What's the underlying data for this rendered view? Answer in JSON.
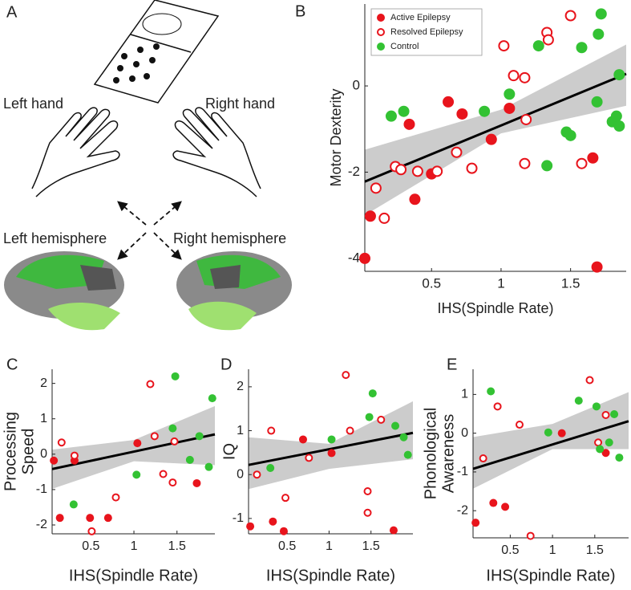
{
  "illustration": {
    "panel": "A",
    "texts": [
      "Left hand",
      "Right hand",
      "Left hemisphere",
      "Right hemisphere"
    ]
  },
  "chart_data": [
    {
      "type": "scatter",
      "panel": "B",
      "x_label": "IHS(Spindle Rate)",
      "y_label": [
        "Motor Dexterity"
      ],
      "xlim": [
        0.02,
        1.9
      ],
      "ylim": [
        -4.3,
        1.9
      ],
      "xticks": [
        0.5,
        1,
        1.5
      ],
      "yticks": [
        -4,
        -2,
        0
      ],
      "legend": "upper left",
      "marker_size": 7,
      "fit": {
        "x": [
          0.02,
          1.9
        ],
        "y": [
          -2.22,
          0.28
        ]
      },
      "ci": {
        "x": [
          0.02,
          1.0,
          1.9
        ],
        "lower": [
          -3.0,
          -1.1,
          -0.46
        ],
        "upper": [
          -1.48,
          -0.55,
          0.96
        ],
        "color": "#cccccc"
      },
      "series": [
        {
          "name": "Active Epilepsy",
          "color": "#e8141c",
          "marker": "filled",
          "x": [
            0.02,
            0.06,
            0.34,
            0.38,
            0.5,
            0.62,
            0.72,
            0.93,
            1.06,
            1.66,
            1.69
          ],
          "y": [
            -4.0,
            -3.02,
            -0.89,
            -2.63,
            -2.04,
            -0.37,
            -0.65,
            -1.24,
            -0.52,
            -1.67,
            -4.2
          ]
        },
        {
          "name": "Resolved Epilepsy",
          "color": "#e8141c",
          "marker": "open",
          "x": [
            0.1,
            0.16,
            0.24,
            0.28,
            0.4,
            0.54,
            0.68,
            0.79,
            1.02,
            1.09,
            1.17,
            1.18,
            1.17,
            1.33,
            1.34,
            1.5,
            1.58
          ],
          "y": [
            -2.37,
            -3.07,
            -1.87,
            -1.94,
            -1.98,
            -1.98,
            -1.54,
            -1.91,
            0.93,
            0.24,
            0.19,
            -0.78,
            -1.8,
            1.24,
            1.07,
            1.63,
            -1.8
          ]
        },
        {
          "name": "Control",
          "color": "#33c233",
          "marker": "filled",
          "x": [
            0.21,
            0.3,
            0.88,
            1.06,
            1.27,
            1.33,
            1.47,
            1.5,
            1.58,
            1.69,
            1.7,
            1.72,
            1.8,
            1.83,
            1.85,
            1.85
          ],
          "y": [
            -0.7,
            -0.59,
            -0.59,
            -0.19,
            0.93,
            -1.85,
            -1.07,
            -1.15,
            0.89,
            -0.37,
            1.2,
            1.67,
            -0.83,
            -0.7,
            -0.93,
            0.26
          ]
        }
      ]
    },
    {
      "type": "scatter",
      "panel": "C",
      "x_label": "IHS(Spindle Rate)",
      "y_label": [
        "Processing",
        "Speed"
      ],
      "xlim": [
        0.05,
        1.94
      ],
      "ylim": [
        -2.25,
        2.4
      ],
      "xticks": [
        0.5,
        1,
        1.5
      ],
      "yticks": [
        -2,
        -1,
        0,
        1,
        2
      ],
      "marker_size": 5,
      "fit": {
        "x": [
          0.05,
          1.94
        ],
        "y": [
          -0.42,
          0.56
        ]
      },
      "ci": {
        "x": [
          0.05,
          1.0,
          1.94
        ],
        "lower": [
          -0.98,
          -0.2,
          -0.31
        ],
        "upper": [
          0.13,
          0.4,
          1.36
        ],
        "color": "#cccccc"
      },
      "series": [
        {
          "name": "Active Epilepsy",
          "color": "#e8141c",
          "marker": "filled",
          "x": [
            0.07,
            0.14,
            0.31,
            0.49,
            0.7,
            1.04,
            1.73
          ],
          "y": [
            -0.18,
            -1.8,
            -0.18,
            -1.8,
            -1.8,
            0.31,
            -0.82
          ]
        },
        {
          "name": "Resolved Epilepsy",
          "color": "#e8141c",
          "marker": "open",
          "x": [
            0.16,
            0.31,
            0.51,
            0.79,
            1.19,
            1.24,
            1.34,
            1.45,
            1.47
          ],
          "y": [
            0.33,
            -0.04,
            -2.18,
            -1.22,
            1.98,
            0.51,
            -0.56,
            -0.8,
            0.36
          ]
        },
        {
          "name": "Control",
          "color": "#33c233",
          "marker": "filled",
          "x": [
            0.3,
            1.03,
            1.48,
            1.45,
            1.65,
            1.76,
            1.87,
            1.91
          ],
          "y": [
            -1.42,
            -0.58,
            2.2,
            0.73,
            -0.16,
            0.51,
            -0.36,
            1.58
          ]
        }
      ]
    },
    {
      "type": "scatter",
      "panel": "D",
      "x_label": "IHS(Spindle Rate)",
      "y_label": [
        "IQ"
      ],
      "xlim": [
        0.04,
        2.0
      ],
      "ylim": [
        -1.35,
        2.4
      ],
      "xticks": [
        0.5,
        1,
        1.5
      ],
      "yticks": [
        -1,
        0,
        1,
        2
      ],
      "marker_size": 5,
      "fit": {
        "x": [
          0.04,
          2.0
        ],
        "y": [
          0.22,
          0.95
        ]
      },
      "ci": {
        "x": [
          0.04,
          1.0,
          2.0
        ],
        "lower": [
          -0.33,
          0.13,
          0.35
        ],
        "upper": [
          0.85,
          0.7,
          1.67
        ],
        "color": "#cccccc"
      },
      "series": [
        {
          "name": "Active Epilepsy",
          "color": "#e8141c",
          "marker": "filled",
          "x": [
            0.06,
            0.33,
            0.46,
            0.69,
            1.03,
            1.77
          ],
          "y": [
            -1.18,
            -1.07,
            -1.29,
            0.8,
            0.49,
            -1.27
          ]
        },
        {
          "name": "Resolved Epilepsy",
          "color": "#e8141c",
          "marker": "open",
          "x": [
            0.14,
            0.31,
            0.48,
            0.76,
            1.25,
            1.2,
            1.62,
            1.46,
            1.46
          ],
          "y": [
            0,
            1.0,
            -0.53,
            0.38,
            1.0,
            2.27,
            1.25,
            -0.38,
            -0.87
          ]
        },
        {
          "name": "Control",
          "color": "#33c233",
          "marker": "filled",
          "x": [
            0.3,
            1.03,
            1.48,
            1.52,
            1.79,
            1.89,
            1.94
          ],
          "y": [
            0.15,
            0.8,
            1.31,
            1.85,
            1.11,
            0.85,
            0.45
          ]
        }
      ]
    },
    {
      "type": "scatter",
      "panel": "E",
      "x_label": "IHS(Spindle Rate)",
      "y_label": [
        "Phonological",
        "Awareness"
      ],
      "xlim": [
        0.06,
        1.9
      ],
      "ylim": [
        -2.7,
        1.65
      ],
      "xticks": [
        0.5,
        1,
        1.5
      ],
      "yticks": [
        -2,
        -1,
        0,
        1
      ],
      "marker_size": 5,
      "fit": {
        "x": [
          0.06,
          1.9
        ],
        "y": [
          -0.92,
          0.31
        ]
      },
      "ci": {
        "x": [
          0.06,
          1.0,
          1.9
        ],
        "lower": [
          -1.43,
          -0.41,
          -0.41
        ],
        "upper": [
          -0.1,
          0.24,
          1.06
        ],
        "color": "#cccccc"
      },
      "series": [
        {
          "name": "Active Epilepsy",
          "color": "#e8141c",
          "marker": "filled",
          "x": [
            0.09,
            0.3,
            0.44,
            1.11,
            1.63
          ],
          "y": [
            -2.31,
            -1.8,
            -1.9,
            0,
            -0.51
          ]
        },
        {
          "name": "Resolved Epilepsy",
          "color": "#e8141c",
          "marker": "open",
          "x": [
            0.18,
            0.35,
            0.61,
            0.74,
            1.44,
            1.63,
            1.54
          ],
          "y": [
            -0.65,
            0.69,
            0.22,
            -2.65,
            1.37,
            0.47,
            -0.24
          ]
        },
        {
          "name": "Control",
          "color": "#33c233",
          "marker": "filled",
          "x": [
            0.27,
            0.95,
            1.31,
            1.52,
            1.67,
            1.56,
            1.73,
            1.79
          ],
          "y": [
            1.08,
            0.02,
            0.84,
            0.69,
            -0.24,
            -0.41,
            0.49,
            -0.63
          ]
        }
      ]
    }
  ]
}
